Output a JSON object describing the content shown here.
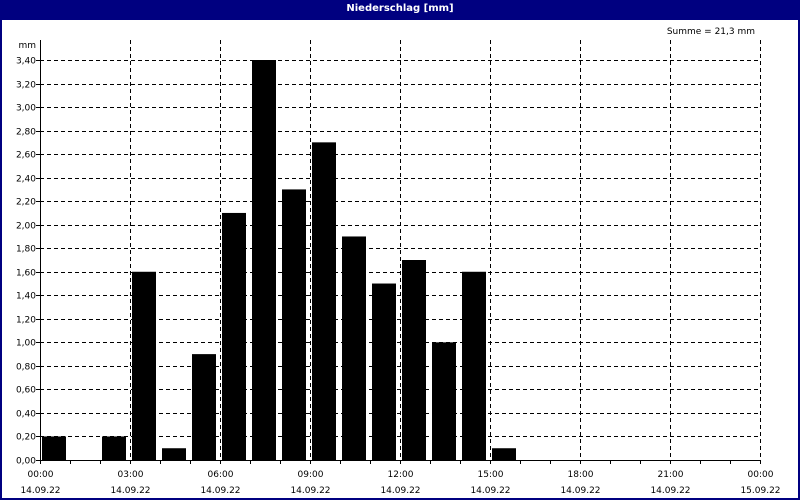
{
  "window": {
    "title": "Niederschlag [mm]"
  },
  "chart_data": {
    "type": "bar",
    "title": "Niederschlag [mm]",
    "ylabel": "mm",
    "annotation": "Summe = 21,3 mm",
    "ylim": [
      0,
      3.57
    ],
    "xlim": [
      "14.09.22 00:00",
      "15.09.22 00:00"
    ],
    "grid": true,
    "yticks": [
      "0,00",
      "0,20",
      "0,40",
      "0,60",
      "0,80",
      "1,00",
      "1,20",
      "1,40",
      "1,60",
      "1,80",
      "2,00",
      "2,20",
      "2,40",
      "2,60",
      "2,80",
      "3,00",
      "3,20",
      "3,40"
    ],
    "xticks": [
      {
        "time": "00:00",
        "date": "14.09.22"
      },
      {
        "time": "03:00",
        "date": "14.09.22"
      },
      {
        "time": "06:00",
        "date": "14.09.22"
      },
      {
        "time": "09:00",
        "date": "14.09.22"
      },
      {
        "time": "12:00",
        "date": "14.09.22"
      },
      {
        "time": "15:00",
        "date": "14.09.22"
      },
      {
        "time": "18:00",
        "date": "14.09.22"
      },
      {
        "time": "21:00",
        "date": "14.09.22"
      },
      {
        "time": "00:00",
        "date": "15.09.22"
      }
    ],
    "categories": [
      "00:00",
      "01:00",
      "02:00",
      "03:00",
      "04:00",
      "05:00",
      "06:00",
      "07:00",
      "08:00",
      "09:00",
      "10:00",
      "11:00",
      "12:00",
      "13:00",
      "14:00",
      "15:00",
      "16:00",
      "17:00",
      "18:00",
      "19:00",
      "20:00",
      "21:00",
      "22:00",
      "23:00"
    ],
    "values": [
      0.2,
      0,
      0.2,
      1.6,
      0.1,
      0.9,
      2.1,
      3.4,
      2.3,
      2.7,
      1.9,
      1.5,
      1.7,
      1.0,
      1.6,
      0.1,
      0,
      0,
      0,
      0,
      0,
      0,
      0,
      0
    ],
    "bar_color": "#000000"
  }
}
